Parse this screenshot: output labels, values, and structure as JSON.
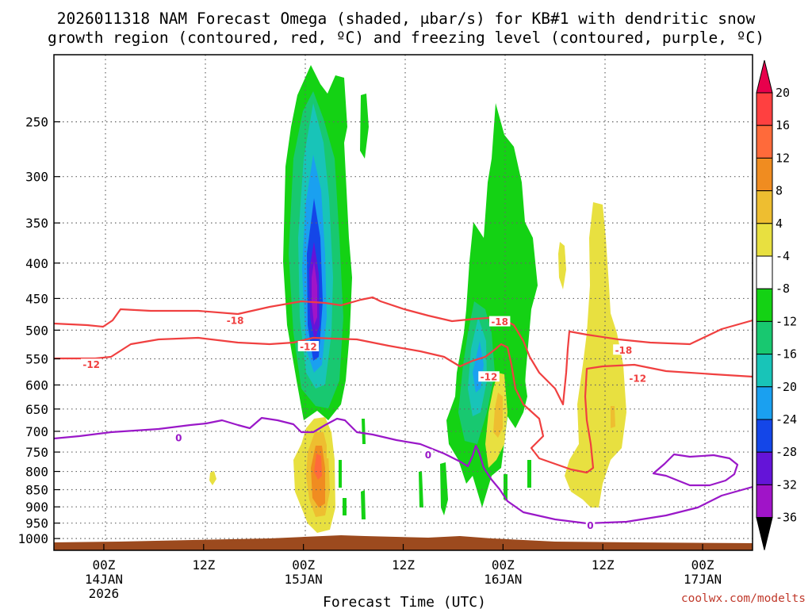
{
  "title_line1": "2026011318 NAM Forecast Omega (shaded, μbar/s) for KB#1 with dendritic snow",
  "title_line2": "growth region (contoured, red, ºC) and freezing level (contoured, purple, ºC)",
  "credit": "coolwx.com/modelts",
  "chart_data": {
    "type": "time-height cross section",
    "title": "2026011318 NAM Forecast Omega (shaded, μbar/s) for KB#1 with dendritic snow growth region (contoured, red, ºC) and freezing level (contoured, purple, ºC)",
    "xlabel": "Forecast Time (UTC)",
    "ylabel": "",
    "x_range_hours": [
      -6,
      78
    ],
    "x_ticks": [
      {
        "hour": 0,
        "l1": "00Z",
        "l2": "14JAN",
        "l3": "2026"
      },
      {
        "hour": 12,
        "l1": "12Z",
        "l2": "",
        "l3": ""
      },
      {
        "hour": 24,
        "l1": "00Z",
        "l2": "15JAN",
        "l3": ""
      },
      {
        "hour": 36,
        "l1": "12Z",
        "l2": "",
        "l3": ""
      },
      {
        "hour": 48,
        "l1": "00Z",
        "l2": "16JAN",
        "l3": ""
      },
      {
        "hour": 60,
        "l1": "12Z",
        "l2": "",
        "l3": ""
      },
      {
        "hour": 72,
        "l1": "00Z",
        "l2": "17JAN",
        "l3": ""
      }
    ],
    "y_range_hPa": [
      200,
      1040
    ],
    "y_ticks": [
      250,
      300,
      350,
      400,
      450,
      500,
      550,
      600,
      650,
      700,
      750,
      800,
      850,
      900,
      950,
      1000
    ],
    "colorbar": {
      "unit": "μbar/s",
      "levels": [
        20,
        16,
        12,
        8,
        4,
        -4,
        -8,
        -12,
        -16,
        -20,
        -24,
        -28,
        -32,
        -36
      ],
      "colors": [
        "#e8004c",
        "#ff4040",
        "#ff6a3a",
        "#f08c20",
        "#eebe30",
        "#e8e040",
        "#ffffff",
        "#14d214",
        "#18c870",
        "#18c4b8",
        "#1aa0f0",
        "#1446e8",
        "#6414d8",
        "#a014c8",
        "#a8a8a8",
        "#000000"
      ]
    },
    "contours": [
      {
        "name": "freezing level",
        "color": "#9a18c8",
        "value": 0,
        "labels": [
          {
            "hour": 9,
            "pressure": 715
          },
          {
            "hour": 39,
            "pressure": 757
          },
          {
            "hour": 58.5,
            "pressure": 957
          }
        ]
      },
      {
        "name": "-18C isotherm",
        "color": "#f04040",
        "value": -18,
        "labels": [
          {
            "hour": 15.8,
            "pressure": 484
          },
          {
            "hour": 47.6,
            "pressure": 486
          },
          {
            "hour": 62.5,
            "pressure": 534
          }
        ]
      },
      {
        "name": "-12C isotherm",
        "color": "#f04040",
        "value": -12,
        "labels": [
          {
            "hour": -1.5,
            "pressure": 560
          },
          {
            "hour": 24.6,
            "pressure": 528
          },
          {
            "hour": 46.3,
            "pressure": 584
          },
          {
            "hour": 64.2,
            "pressure": 587
          }
        ]
      }
    ]
  }
}
